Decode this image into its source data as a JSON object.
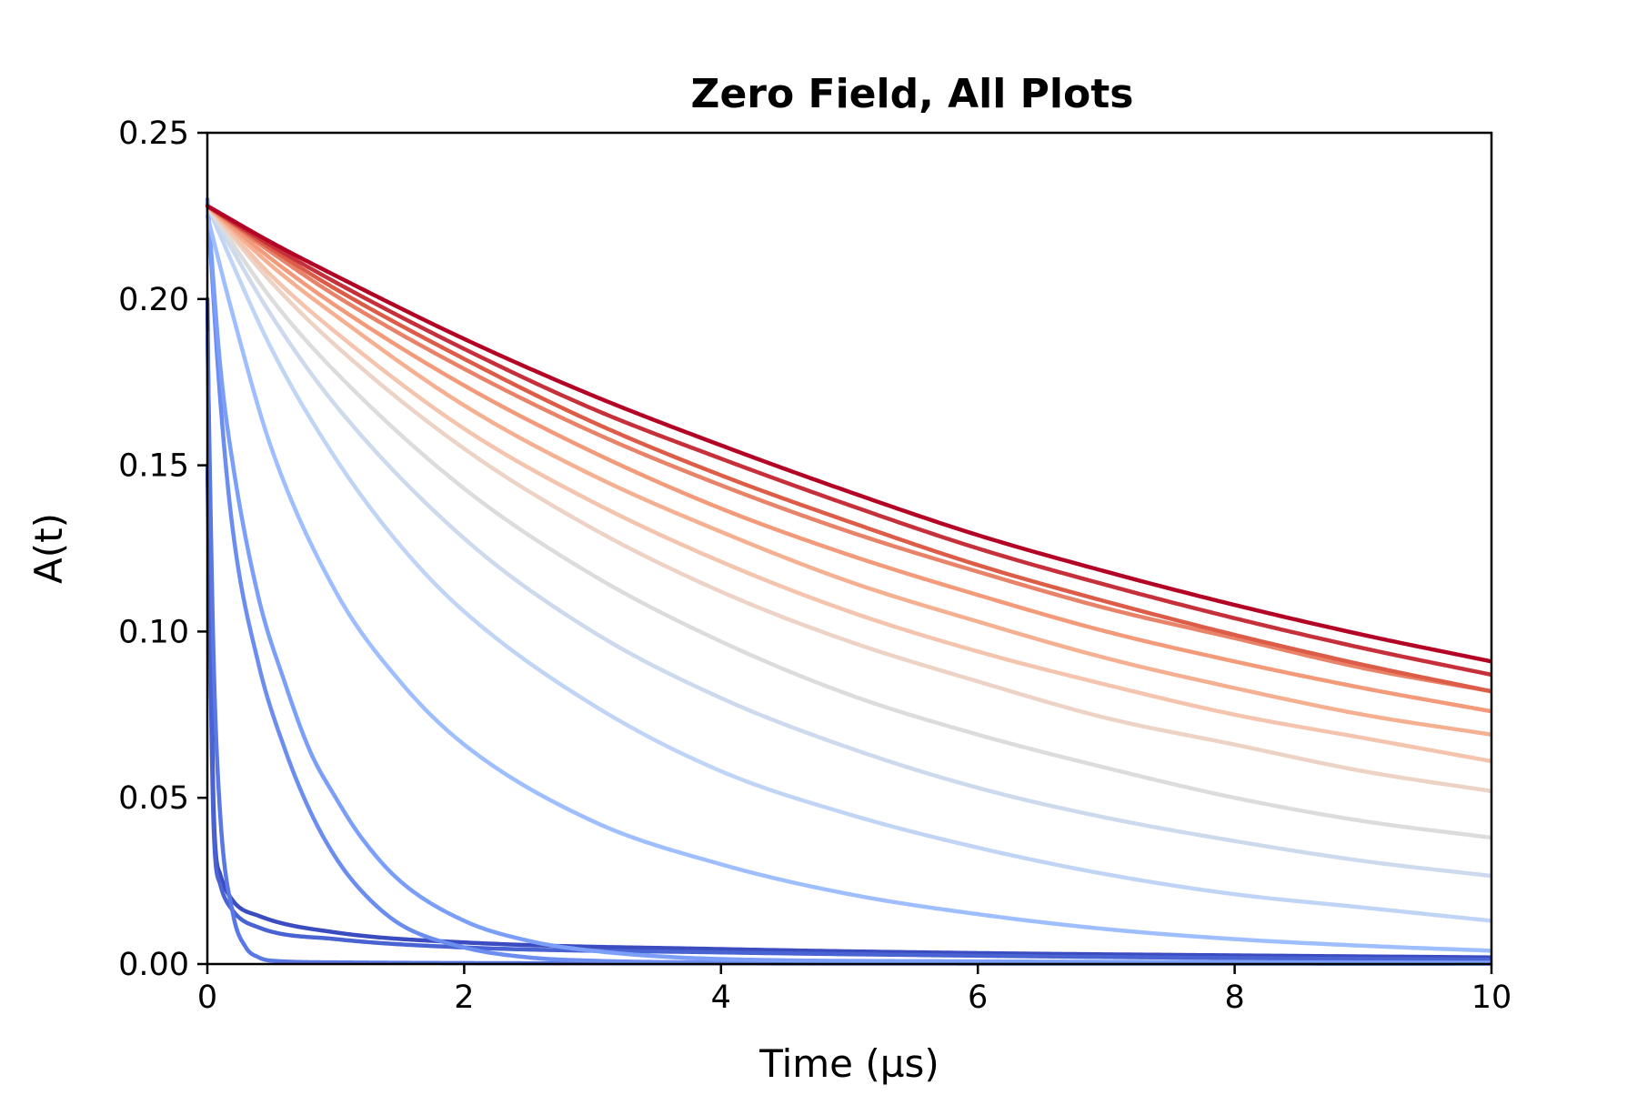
{
  "chart_data": {
    "type": "line",
    "title": "Zero Field, All Plots",
    "xlabel": "Time (µs)",
    "ylabel": "A(t)",
    "xlim": [
      0,
      10
    ],
    "ylim": [
      0,
      0.25
    ],
    "grid": false,
    "legend": "none",
    "colormap": "coolwarm",
    "xticks": [
      {
        "value": 0,
        "label": "0"
      },
      {
        "value": 2,
        "label": "2"
      },
      {
        "value": 4,
        "label": "4"
      },
      {
        "value": 6,
        "label": "6"
      },
      {
        "value": 8,
        "label": "8"
      },
      {
        "value": 10,
        "label": "10"
      }
    ],
    "yticks": [
      {
        "value": 0,
        "label": "0.00"
      },
      {
        "value": 0.05,
        "label": "0.05"
      },
      {
        "value": 0.1,
        "label": "0.10"
      },
      {
        "value": 0.15,
        "label": "0.15"
      },
      {
        "value": 0.2,
        "label": "0.20"
      },
      {
        "value": 0.25,
        "label": "0.25"
      }
    ],
    "series": [
      {
        "color": "#3b4cc0",
        "points": [
          [
            0,
            0.2
          ],
          [
            0.05,
            0.045
          ],
          [
            0.1,
            0.027
          ],
          [
            0.2,
            0.019
          ],
          [
            0.4,
            0.0145
          ],
          [
            1,
            0.0095
          ],
          [
            2,
            0.0065
          ],
          [
            4,
            0.0045
          ],
          [
            6,
            0.0033
          ],
          [
            8,
            0.0026
          ],
          [
            10,
            0.002
          ]
        ]
      },
      {
        "color": "#4a63d3",
        "points": [
          [
            0,
            0.15
          ],
          [
            0.05,
            0.04
          ],
          [
            0.1,
            0.024
          ],
          [
            0.2,
            0.016
          ],
          [
            0.4,
            0.011
          ],
          [
            1,
            0.0075
          ],
          [
            2,
            0.005
          ],
          [
            4,
            0.0035
          ],
          [
            6,
            0.0025
          ],
          [
            8,
            0.0018
          ],
          [
            10,
            0.0013
          ]
        ]
      },
      {
        "color": "#5a78e4",
        "points": [
          [
            0,
            0.19
          ],
          [
            0.05,
            0.09
          ],
          [
            0.1,
            0.045
          ],
          [
            0.2,
            0.015
          ],
          [
            0.3,
            0.005
          ],
          [
            0.4,
            0.002
          ],
          [
            0.5,
            0.001
          ],
          [
            1,
            0.0005
          ],
          [
            2,
            0.0003
          ],
          [
            4,
            0.0002
          ],
          [
            10,
            0.0001
          ]
        ]
      },
      {
        "color": "#6b8df0",
        "points": [
          [
            0,
            0.23
          ],
          [
            0.1,
            0.17
          ],
          [
            0.2,
            0.13
          ],
          [
            0.4,
            0.09
          ],
          [
            0.6,
            0.065
          ],
          [
            0.8,
            0.046
          ],
          [
            1,
            0.032
          ],
          [
            1.2,
            0.022
          ],
          [
            1.5,
            0.012
          ],
          [
            2,
            0.005
          ],
          [
            2.5,
            0.002
          ],
          [
            3,
            0.001
          ],
          [
            4,
            0.0005
          ],
          [
            10,
            0.0002
          ]
        ]
      },
      {
        "color": "#7b9ff9",
        "points": [
          [
            0,
            0.23
          ],
          [
            0.1,
            0.18
          ],
          [
            0.2,
            0.15
          ],
          [
            0.4,
            0.11
          ],
          [
            0.6,
            0.085
          ],
          [
            0.8,
            0.064
          ],
          [
            1,
            0.05
          ],
          [
            1.2,
            0.038
          ],
          [
            1.5,
            0.025
          ],
          [
            2,
            0.013
          ],
          [
            2.5,
            0.007
          ],
          [
            3,
            0.004
          ],
          [
            4,
            0.0015
          ],
          [
            6,
            0.0008
          ],
          [
            10,
            0.0004
          ]
        ]
      },
      {
        "color": "#9ebeff",
        "points": [
          [
            0,
            0.225
          ],
          [
            0.2,
            0.195
          ],
          [
            0.5,
            0.155
          ],
          [
            1,
            0.112
          ],
          [
            1.5,
            0.085
          ],
          [
            2,
            0.066
          ],
          [
            3,
            0.043
          ],
          [
            4,
            0.03
          ],
          [
            5,
            0.021
          ],
          [
            6,
            0.015
          ],
          [
            7,
            0.0105
          ],
          [
            8,
            0.0075
          ],
          [
            9,
            0.0055
          ],
          [
            10,
            0.004
          ]
        ]
      },
      {
        "color": "#c0d4f5",
        "points": [
          [
            0,
            0.228
          ],
          [
            0.5,
            0.185
          ],
          [
            1,
            0.152
          ],
          [
            1.5,
            0.126
          ],
          [
            2,
            0.106
          ],
          [
            3,
            0.078
          ],
          [
            4,
            0.058
          ],
          [
            5,
            0.045
          ],
          [
            6,
            0.035
          ],
          [
            7,
            0.027
          ],
          [
            8,
            0.021
          ],
          [
            9,
            0.017
          ],
          [
            10,
            0.013
          ]
        ]
      },
      {
        "color": "#cdd9ec",
        "points": [
          [
            0,
            0.228
          ],
          [
            0.5,
            0.195
          ],
          [
            1,
            0.168
          ],
          [
            2,
            0.128
          ],
          [
            3,
            0.1
          ],
          [
            4,
            0.08
          ],
          [
            5,
            0.065
          ],
          [
            6,
            0.053
          ],
          [
            7,
            0.044
          ],
          [
            8,
            0.037
          ],
          [
            9,
            0.031
          ],
          [
            10,
            0.0265
          ]
        ]
      },
      {
        "color": "#dddcdc",
        "points": [
          [
            0,
            0.228
          ],
          [
            0.5,
            0.2
          ],
          [
            1,
            0.178
          ],
          [
            2,
            0.143
          ],
          [
            3,
            0.117
          ],
          [
            4,
            0.097
          ],
          [
            5,
            0.081
          ],
          [
            6,
            0.069
          ],
          [
            7,
            0.059
          ],
          [
            8,
            0.05
          ],
          [
            9,
            0.043
          ],
          [
            10,
            0.038
          ]
        ]
      },
      {
        "color": "#ecd3c5",
        "points": [
          [
            0,
            0.228
          ],
          [
            0.5,
            0.205
          ],
          [
            1,
            0.186
          ],
          [
            2,
            0.155
          ],
          [
            3,
            0.131
          ],
          [
            4,
            0.112
          ],
          [
            5,
            0.097
          ],
          [
            6,
            0.085
          ],
          [
            7,
            0.074
          ],
          [
            8,
            0.066
          ],
          [
            9,
            0.058
          ],
          [
            10,
            0.052
          ]
        ]
      },
      {
        "color": "#f4c4ae",
        "points": [
          [
            0,
            0.228
          ],
          [
            0.5,
            0.207
          ],
          [
            1,
            0.19
          ],
          [
            2,
            0.161
          ],
          [
            3,
            0.139
          ],
          [
            4,
            0.121
          ],
          [
            5,
            0.106
          ],
          [
            6,
            0.094
          ],
          [
            7,
            0.084
          ],
          [
            8,
            0.075
          ],
          [
            9,
            0.068
          ],
          [
            10,
            0.061
          ]
        ]
      },
      {
        "color": "#f5b092",
        "points": [
          [
            0,
            0.228
          ],
          [
            0.5,
            0.21
          ],
          [
            1,
            0.195
          ],
          [
            2,
            0.168
          ],
          [
            3,
            0.147
          ],
          [
            4,
            0.13
          ],
          [
            5,
            0.115
          ],
          [
            6,
            0.103
          ],
          [
            7,
            0.092
          ],
          [
            8,
            0.083
          ],
          [
            9,
            0.075
          ],
          [
            10,
            0.069
          ]
        ]
      },
      {
        "color": "#f29a7a",
        "points": [
          [
            0,
            0.228
          ],
          [
            0.5,
            0.212
          ],
          [
            1,
            0.198
          ],
          [
            2,
            0.174
          ],
          [
            3,
            0.154
          ],
          [
            4,
            0.137
          ],
          [
            5,
            0.123
          ],
          [
            6,
            0.111
          ],
          [
            7,
            0.1
          ],
          [
            8,
            0.091
          ],
          [
            9,
            0.083
          ],
          [
            10,
            0.076
          ]
        ]
      },
      {
        "color": "#e8836a",
        "points": [
          [
            0,
            0.228
          ],
          [
            0.5,
            0.214
          ],
          [
            1,
            0.201
          ],
          [
            2,
            0.179
          ],
          [
            3,
            0.16
          ],
          [
            4,
            0.144
          ],
          [
            5,
            0.13
          ],
          [
            6,
            0.118
          ],
          [
            7,
            0.107
          ],
          [
            8,
            0.098
          ],
          [
            9,
            0.089
          ],
          [
            10,
            0.082
          ]
        ]
      },
      {
        "color": "#dc5c48",
        "points": [
          [
            0,
            0.228
          ],
          [
            0.5,
            0.215
          ],
          [
            1,
            0.203
          ],
          [
            2,
            0.182
          ],
          [
            3,
            0.163
          ],
          [
            4,
            0.147
          ],
          [
            5,
            0.133
          ],
          [
            6,
            0.12
          ],
          [
            7,
            0.109
          ],
          [
            8,
            0.099
          ],
          [
            9,
            0.09
          ],
          [
            10,
            0.082
          ]
        ]
      },
      {
        "color": "#c6303a",
        "points": [
          [
            0,
            0.228
          ],
          [
            0.5,
            0.216
          ],
          [
            1,
            0.205
          ],
          [
            2,
            0.185
          ],
          [
            3,
            0.167
          ],
          [
            4,
            0.152
          ],
          [
            5,
            0.138
          ],
          [
            6,
            0.125
          ],
          [
            7,
            0.114
          ],
          [
            8,
            0.104
          ],
          [
            9,
            0.095
          ],
          [
            10,
            0.087
          ]
        ]
      },
      {
        "color": "#b40426",
        "points": [
          [
            0,
            0.228
          ],
          [
            0.5,
            0.217
          ],
          [
            1,
            0.207
          ],
          [
            2,
            0.188
          ],
          [
            3,
            0.171
          ],
          [
            4,
            0.156
          ],
          [
            5,
            0.142
          ],
          [
            6,
            0.129
          ],
          [
            7,
            0.118
          ],
          [
            8,
            0.108
          ],
          [
            9,
            0.099
          ],
          [
            10,
            0.091
          ]
        ]
      }
    ]
  }
}
